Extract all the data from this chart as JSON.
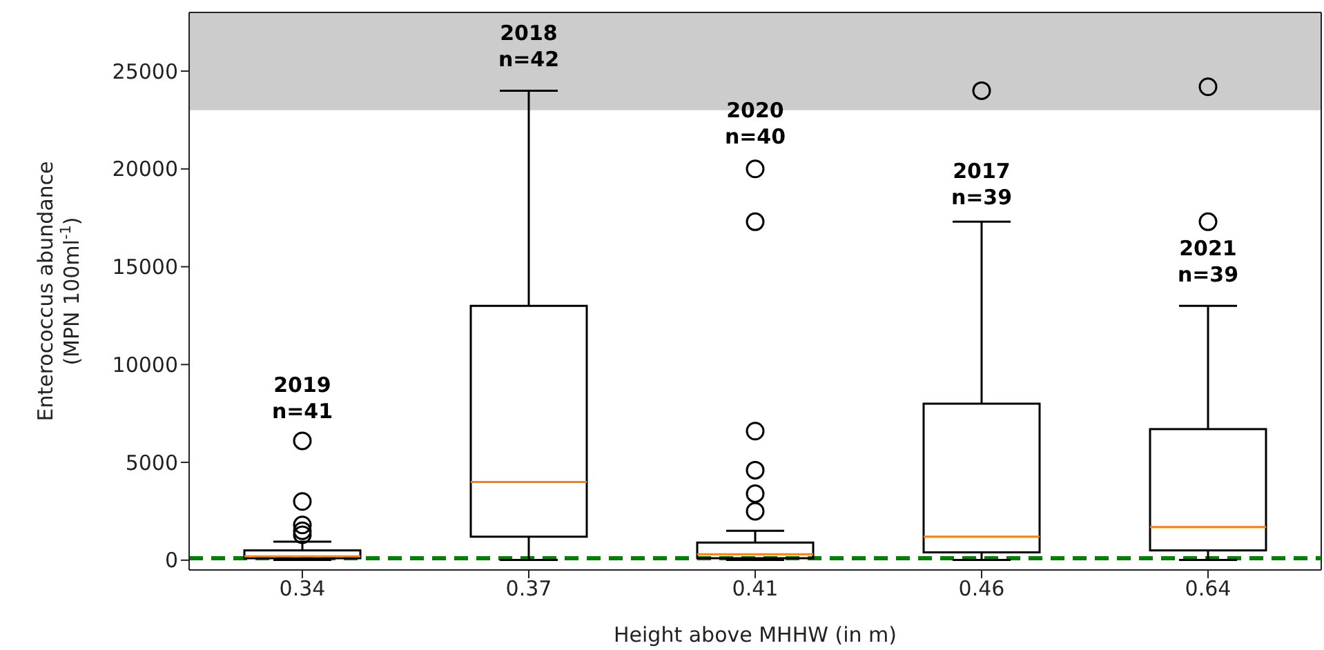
{
  "chart_data": {
    "type": "box",
    "xlabel": "Height above MHHW (in m)",
    "ylabel": "Enterococcus abundance (MPN 100ml$^{-1}$)",
    "categories": [
      "0.34",
      "0.37",
      "0.41",
      "0.46",
      "0.64"
    ],
    "boxes": [
      {
        "low": 10,
        "q1": 100,
        "median": 200,
        "q3": 500,
        "high": 950,
        "outliers": [
          6100,
          3000,
          1800,
          1500,
          1300
        ]
      },
      {
        "low": 10,
        "q1": 1200,
        "median": 4000,
        "q3": 13000,
        "high": 24000
      },
      {
        "low": 10,
        "q1": 100,
        "median": 300,
        "q3": 900,
        "high": 1500,
        "outliers": [
          20000,
          17300,
          6600,
          4600,
          3400,
          2500
        ]
      },
      {
        "low": 10,
        "q1": 400,
        "median": 1200,
        "q3": 8000,
        "high": 17300,
        "outliers": [
          24000
        ]
      },
      {
        "low": 10,
        "q1": 500,
        "median": 1700,
        "q3": 6700,
        "high": 13000,
        "outliers": [
          24200,
          17300
        ]
      }
    ],
    "ylim": [
      -500,
      28000
    ],
    "yticks": [
      0,
      5000,
      10000,
      15000,
      20000,
      25000
    ],
    "ref_lines": [
      {
        "axis": "y",
        "value": 104,
        "color": "#008000",
        "line_style": "dashed"
      }
    ],
    "bands": [
      {
        "axis": "y",
        "from": 23000,
        "to": 28000,
        "color": "#cccccc"
      }
    ],
    "annotations": [
      "2019\nn=41",
      "2018\nn=42",
      "2020\nn=40",
      "2017\nn=39",
      "2021\nn=39"
    ]
  }
}
